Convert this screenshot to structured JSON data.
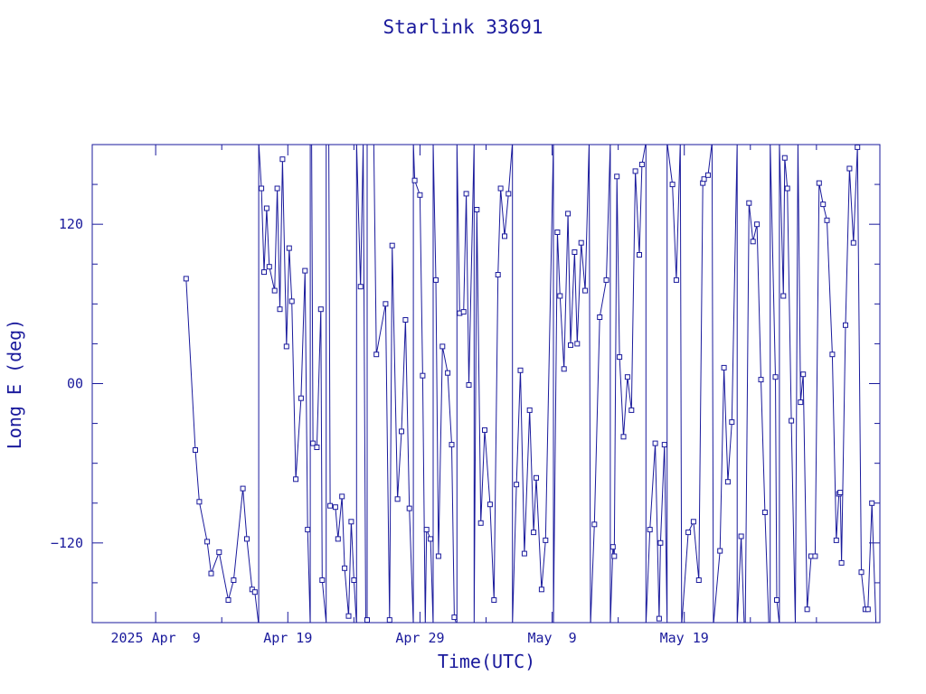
{
  "chart_data": {
    "type": "scatter",
    "title": "Starlink 33691",
    "xlabel": "Time(UTC)",
    "ylabel": "Long E (deg)",
    "x_unit": "days",
    "xlim": [
      -4.8,
      54.8
    ],
    "ylim": [
      -180,
      180
    ],
    "colors": {
      "line": "#1a1a9c",
      "marker": "#1a1a9c",
      "frame": "#1a1a9c",
      "text": "#1a1a9c"
    },
    "x_ticks": [
      {
        "value": 0,
        "label": "2025 Apr  9"
      },
      {
        "value": 10,
        "label": "Apr 19"
      },
      {
        "value": 20,
        "label": "Apr 29"
      },
      {
        "value": 30,
        "label": "May  9"
      },
      {
        "value": 40,
        "label": "May 19"
      }
    ],
    "x_minor_ticks": [
      -5,
      5,
      15,
      25,
      35,
      45,
      50
    ],
    "y_ticks": [
      {
        "value": -120,
        "label": "−120"
      },
      {
        "value": 0,
        "label": "00"
      },
      {
        "value": 120,
        "label": "120"
      }
    ],
    "y_minor_ticks": [
      -150,
      -90,
      -60,
      -30,
      30,
      60,
      90,
      150
    ],
    "series": [
      {
        "markers": true,
        "points": [
          [
            2.3,
            79
          ],
          [
            3.0,
            -50
          ],
          [
            3.3,
            -89
          ],
          [
            3.9,
            -119
          ],
          [
            4.2,
            -143
          ],
          [
            4.8,
            -127
          ],
          [
            5.5,
            -163
          ],
          [
            5.9,
            -148
          ],
          [
            6.6,
            -79
          ],
          [
            6.9,
            -117
          ],
          [
            7.3,
            -155
          ],
          [
            7.5,
            -157
          ],
          [
            7.8,
            -182
          ],
          [
            7.8,
            182
          ],
          [
            8.0,
            147
          ],
          [
            8.2,
            84
          ],
          [
            8.4,
            132
          ],
          [
            8.6,
            88
          ],
          [
            9.0,
            70
          ],
          [
            9.2,
            147
          ],
          [
            9.4,
            56
          ],
          [
            9.6,
            169
          ],
          [
            9.9,
            28
          ],
          [
            10.1,
            102
          ],
          [
            10.3,
            62
          ],
          [
            10.6,
            -72
          ],
          [
            11.0,
            -11
          ],
          [
            11.3,
            85
          ],
          [
            11.5,
            -110
          ],
          [
            11.7,
            -182
          ],
          [
            11.7,
            182
          ],
          [
            11.8,
            182
          ],
          [
            11.9,
            -45
          ],
          [
            12.2,
            -48
          ],
          [
            12.5,
            56
          ],
          [
            12.6,
            -148
          ],
          [
            12.9,
            -180
          ],
          [
            12.9,
            180
          ],
          [
            13.1,
            180
          ],
          [
            13.2,
            -92
          ],
          [
            13.6,
            -93
          ],
          [
            13.8,
            -117
          ],
          [
            14.1,
            -85
          ],
          [
            14.3,
            -139
          ],
          [
            14.6,
            -175
          ],
          [
            14.8,
            -104
          ],
          [
            15.0,
            -148
          ],
          [
            15.2,
            -182
          ],
          [
            15.2,
            182
          ],
          [
            15.5,
            73
          ],
          [
            15.7,
            181
          ],
          [
            15.9,
            -182
          ],
          [
            16.0,
            -178
          ],
          [
            16.0,
            182
          ],
          [
            16.5,
            184
          ],
          [
            16.7,
            22
          ],
          [
            17.4,
            60
          ],
          [
            17.7,
            -178
          ],
          [
            17.9,
            104
          ],
          [
            18.3,
            -87
          ],
          [
            18.6,
            -36
          ],
          [
            18.9,
            48
          ],
          [
            19.2,
            -94
          ],
          [
            19.5,
            -182
          ],
          [
            19.5,
            182
          ],
          [
            19.6,
            153
          ],
          [
            20.0,
            142
          ],
          [
            20.2,
            6
          ],
          [
            20.4,
            -182
          ],
          [
            20.5,
            -110
          ],
          [
            20.8,
            -117
          ],
          [
            21.0,
            -182
          ],
          [
            21.0,
            182
          ],
          [
            21.2,
            78
          ],
          [
            21.4,
            -130
          ],
          [
            21.7,
            28
          ],
          [
            22.1,
            8
          ],
          [
            22.4,
            -46
          ],
          [
            22.6,
            -176
          ],
          [
            22.8,
            -182
          ],
          [
            22.8,
            182
          ],
          [
            23.0,
            53
          ],
          [
            23.3,
            54
          ],
          [
            23.5,
            143
          ],
          [
            23.7,
            -1
          ],
          [
            24.1,
            182
          ],
          [
            24.1,
            -182
          ],
          [
            24.3,
            131
          ],
          [
            24.6,
            -105
          ],
          [
            24.9,
            -35
          ],
          [
            25.3,
            -91
          ],
          [
            25.6,
            -163
          ],
          [
            25.9,
            82
          ],
          [
            26.1,
            147
          ],
          [
            26.4,
            111
          ],
          [
            26.7,
            143
          ],
          [
            27.0,
            182
          ],
          [
            27.0,
            -182
          ],
          [
            27.3,
            -76
          ],
          [
            27.6,
            10
          ],
          [
            27.9,
            -128
          ],
          [
            28.3,
            -20
          ],
          [
            28.6,
            -112
          ],
          [
            28.8,
            -71
          ],
          [
            29.2,
            -155
          ],
          [
            29.5,
            -118
          ],
          [
            30.1,
            182
          ],
          [
            30.1,
            -182
          ],
          [
            30.4,
            114
          ],
          [
            30.6,
            66
          ],
          [
            30.9,
            11
          ],
          [
            31.2,
            128
          ],
          [
            31.4,
            29
          ],
          [
            31.7,
            99
          ],
          [
            31.9,
            30
          ],
          [
            32.2,
            106
          ],
          [
            32.5,
            70
          ],
          [
            32.8,
            182
          ],
          [
            32.9,
            -182
          ],
          [
            33.2,
            -106
          ],
          [
            33.6,
            50
          ],
          [
            34.1,
            78
          ],
          [
            34.4,
            182
          ],
          [
            34.4,
            -182
          ],
          [
            34.6,
            -123
          ],
          [
            34.7,
            -130
          ],
          [
            34.9,
            156
          ],
          [
            35.1,
            20
          ],
          [
            35.4,
            -40
          ],
          [
            35.7,
            5
          ],
          [
            36.0,
            -20
          ],
          [
            36.3,
            160
          ],
          [
            36.6,
            97
          ],
          [
            36.8,
            165
          ],
          [
            37.1,
            182
          ],
          [
            37.1,
            -182
          ],
          [
            37.4,
            -110
          ],
          [
            37.8,
            -45
          ],
          [
            38.1,
            -177
          ],
          [
            38.2,
            -120
          ],
          [
            38.5,
            -46
          ],
          [
            38.7,
            -182
          ],
          [
            38.7,
            182
          ],
          [
            39.1,
            150
          ],
          [
            39.4,
            78
          ],
          [
            39.7,
            182
          ],
          [
            39.8,
            -182
          ],
          [
            40.3,
            -112
          ],
          [
            40.7,
            -104
          ],
          [
            41.1,
            -148
          ],
          [
            41.4,
            151
          ],
          [
            41.5,
            154
          ],
          [
            41.8,
            157
          ],
          [
            42.1,
            182
          ],
          [
            42.2,
            -182
          ],
          [
            42.7,
            -126
          ],
          [
            43.0,
            12
          ],
          [
            43.3,
            -74
          ],
          [
            43.6,
            -29
          ],
          [
            44.0,
            182
          ],
          [
            44.0,
            -182
          ],
          [
            44.3,
            -115
          ],
          [
            44.6,
            -200
          ],
          [
            44.9,
            136
          ],
          [
            45.2,
            107
          ],
          [
            45.5,
            120
          ],
          [
            45.8,
            3
          ],
          [
            46.1,
            -97
          ],
          [
            46.4,
            -182
          ],
          [
            46.5,
            -182
          ],
          [
            46.5,
            182
          ],
          [
            46.9,
            5
          ],
          [
            47.0,
            -163
          ],
          [
            47.2,
            -182
          ],
          [
            47.2,
            182
          ],
          [
            47.5,
            66
          ],
          [
            47.6,
            170
          ],
          [
            47.8,
            147
          ],
          [
            48.1,
            -28
          ],
          [
            48.4,
            -182
          ],
          [
            48.6,
            182
          ],
          [
            48.8,
            -14
          ],
          [
            49.0,
            7
          ],
          [
            49.3,
            -170
          ],
          [
            49.6,
            -130
          ],
          [
            49.9,
            -130
          ],
          [
            50.2,
            151
          ],
          [
            50.5,
            135
          ],
          [
            50.8,
            123
          ],
          [
            51.2,
            22
          ],
          [
            51.5,
            -118
          ],
          [
            51.7,
            -83
          ],
          [
            51.8,
            -82
          ],
          [
            51.9,
            -135
          ],
          [
            52.2,
            44
          ],
          [
            52.5,
            162
          ],
          [
            52.8,
            106
          ],
          [
            53.1,
            178
          ],
          [
            53.4,
            -142
          ],
          [
            53.7,
            -170
          ],
          [
            53.9,
            -170
          ],
          [
            54.2,
            -90
          ],
          [
            54.5,
            -180
          ]
        ]
      }
    ]
  }
}
